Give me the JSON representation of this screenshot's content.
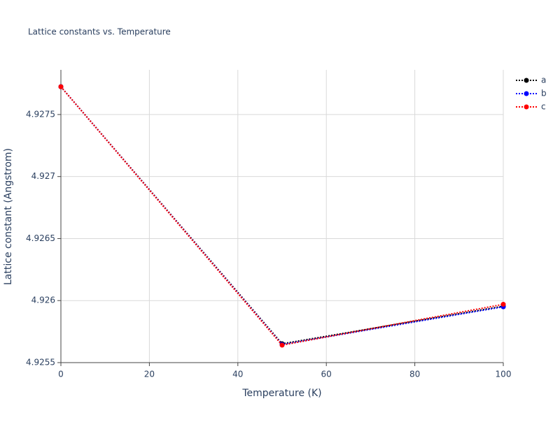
{
  "chart_data": {
    "type": "line",
    "title": "Lattice constants vs. Temperature",
    "x_label": "Temperature (K)",
    "y_label": "Lattice constant (Angstrom)",
    "x": [
      0,
      50,
      100
    ],
    "series": [
      {
        "name": "a",
        "color": "#000000",
        "values": [
          4.927724,
          4.925652,
          4.925955
        ]
      },
      {
        "name": "b",
        "color": "#0000ff",
        "values": [
          4.927724,
          4.925646,
          4.92595
        ]
      },
      {
        "name": "c",
        "color": "#ff0000",
        "values": [
          4.927724,
          4.925641,
          4.92597
        ]
      }
    ],
    "xlim": [
      0,
      100
    ],
    "xticks": [
      0,
      20,
      40,
      60,
      80,
      100
    ],
    "ylim": [
      4.9255,
      4.92786
    ],
    "yticks": [
      4.9255,
      4.926,
      4.9265,
      4.927,
      4.9275
    ],
    "grid": true,
    "legend": "top-right"
  }
}
